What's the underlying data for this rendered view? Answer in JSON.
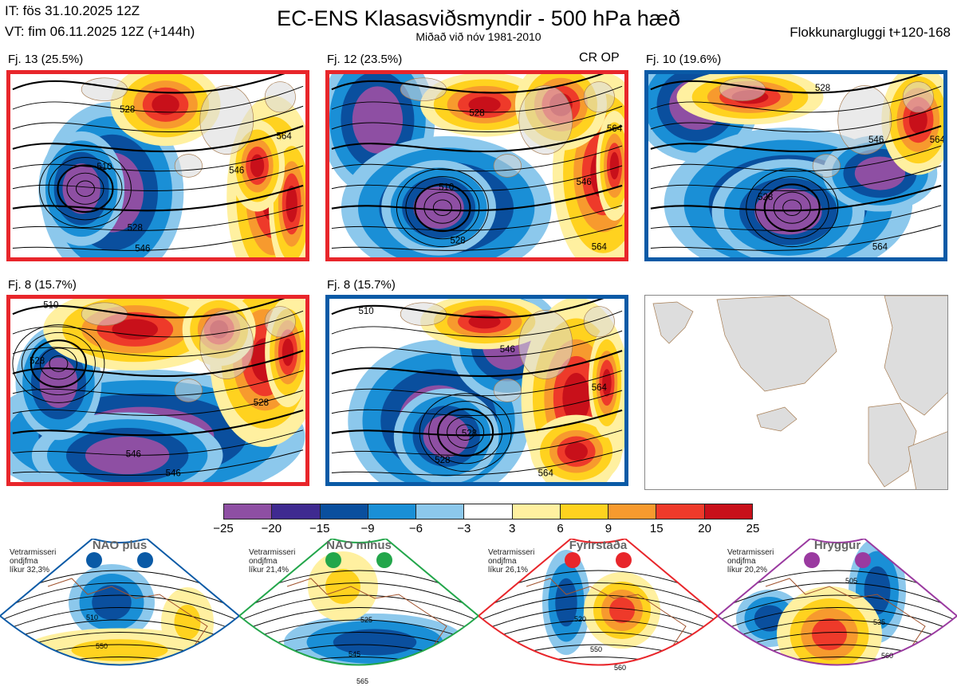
{
  "header": {
    "it": "IT: fös 31.10.2025 12Z",
    "vt": "VT: fim 06.11.2025 12Z  (+144h)",
    "title": "EC-ENS Klasasviðsmyndir - 500 hPa hæð",
    "subtitle": "Miðað við nóv 1981-2010",
    "window": "Flokkunargluggi t+120-168",
    "cr_op": "CR OP"
  },
  "chart_data": {
    "type": "heatmap",
    "panels": [
      {
        "label": "Fj. 13 (25.5%)",
        "members": 13,
        "percent": 25.5,
        "border": "#e8262b",
        "contours": [
          "528",
          "510",
          "546",
          "564",
          "528",
          "546"
        ]
      },
      {
        "label": "Fj. 12 (23.5%)",
        "members": 12,
        "percent": 23.5,
        "border": "#e8262b",
        "contours": [
          "528",
          "510",
          "546",
          "564",
          "528",
          "564"
        ]
      },
      {
        "label": "Fj. 10 (19.6%)",
        "members": 10,
        "percent": 19.6,
        "border": "#0a5aa6",
        "contours": [
          "528",
          "546",
          "564",
          "528",
          "564"
        ]
      },
      {
        "label": "Fj. 8 (15.7%)",
        "members": 8,
        "percent": 15.7,
        "border": "#e8262b",
        "contours": [
          "510",
          "528",
          "546",
          "528",
          "546"
        ]
      },
      {
        "label": "Fj. 8 (15.7%)",
        "members": 8,
        "percent": 15.7,
        "border": "#0a5aa6",
        "contours": [
          "510",
          "528",
          "546",
          "564",
          "528",
          "564"
        ]
      }
    ],
    "colorbar": {
      "ticks": [
        "−25",
        "−20",
        "−15",
        "−9",
        "−6",
        "−3",
        "3",
        "6",
        "9",
        "15",
        "20",
        "25"
      ],
      "colors": [
        "#8e4fa3",
        "#3f2a90",
        "#0a4f9e",
        "#1a8fd6",
        "#8cc8ec",
        "#ffffff",
        "#fff0a0",
        "#ffd21f",
        "#f79a2e",
        "#ee3a2a",
        "#c8101a"
      ]
    },
    "regimes": [
      {
        "name": "NAO plús",
        "text": [
          "Vetrarmisseri",
          "ondjfma",
          "líkur 32,3%"
        ],
        "probability": 32.3,
        "color": "#0a5aa6",
        "contours": [
          "510",
          "550"
        ]
      },
      {
        "name": "NAO mínus",
        "text": [
          "Vetrarmisseri",
          "ondjfma",
          "líkur 21,4%"
        ],
        "probability": 21.4,
        "color": "#23a64b",
        "contours": [
          "525",
          "545",
          "565"
        ]
      },
      {
        "name": "Fyrirstaða",
        "text": [
          "Vetrarmisseri",
          "ondjfma",
          "líkur 26,1%"
        ],
        "probability": 26.1,
        "color": "#e8262b",
        "contours": [
          "520",
          "550",
          "560"
        ]
      },
      {
        "name": "Hryggur",
        "text": [
          "Vetrarmisseri",
          "ondjfma",
          "líkur 20,2%"
        ],
        "probability": 20.2,
        "color": "#9a3aa0",
        "contours": [
          "505",
          "535",
          "560"
        ]
      }
    ]
  }
}
